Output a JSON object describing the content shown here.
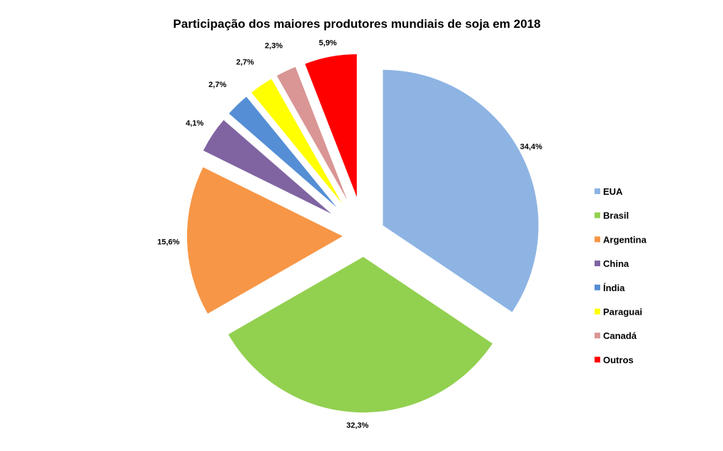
{
  "chart_data": {
    "type": "pie",
    "title": "Participação dos maiores produtores mundiais de soja em 2018",
    "categories": [
      "EUA",
      "Brasil",
      "Argentina",
      "China",
      "Índia",
      "Paraguai",
      "Canadá",
      "Outros"
    ],
    "values": [
      34.4,
      32.3,
      15.6,
      4.1,
      2.7,
      2.7,
      2.3,
      5.9
    ],
    "labels": [
      "34,4%",
      "32,3%",
      "15,6%",
      "4,1%",
      "2,7%",
      "2,7%",
      "2,3%",
      "5,9%"
    ],
    "colors": [
      "#8EB4E3",
      "#92D050",
      "#F79646",
      "#8064A2",
      "#558ED5",
      "#FFFF00",
      "#D99694",
      "#FF0000"
    ],
    "legend_position": "right",
    "exploded": true
  }
}
